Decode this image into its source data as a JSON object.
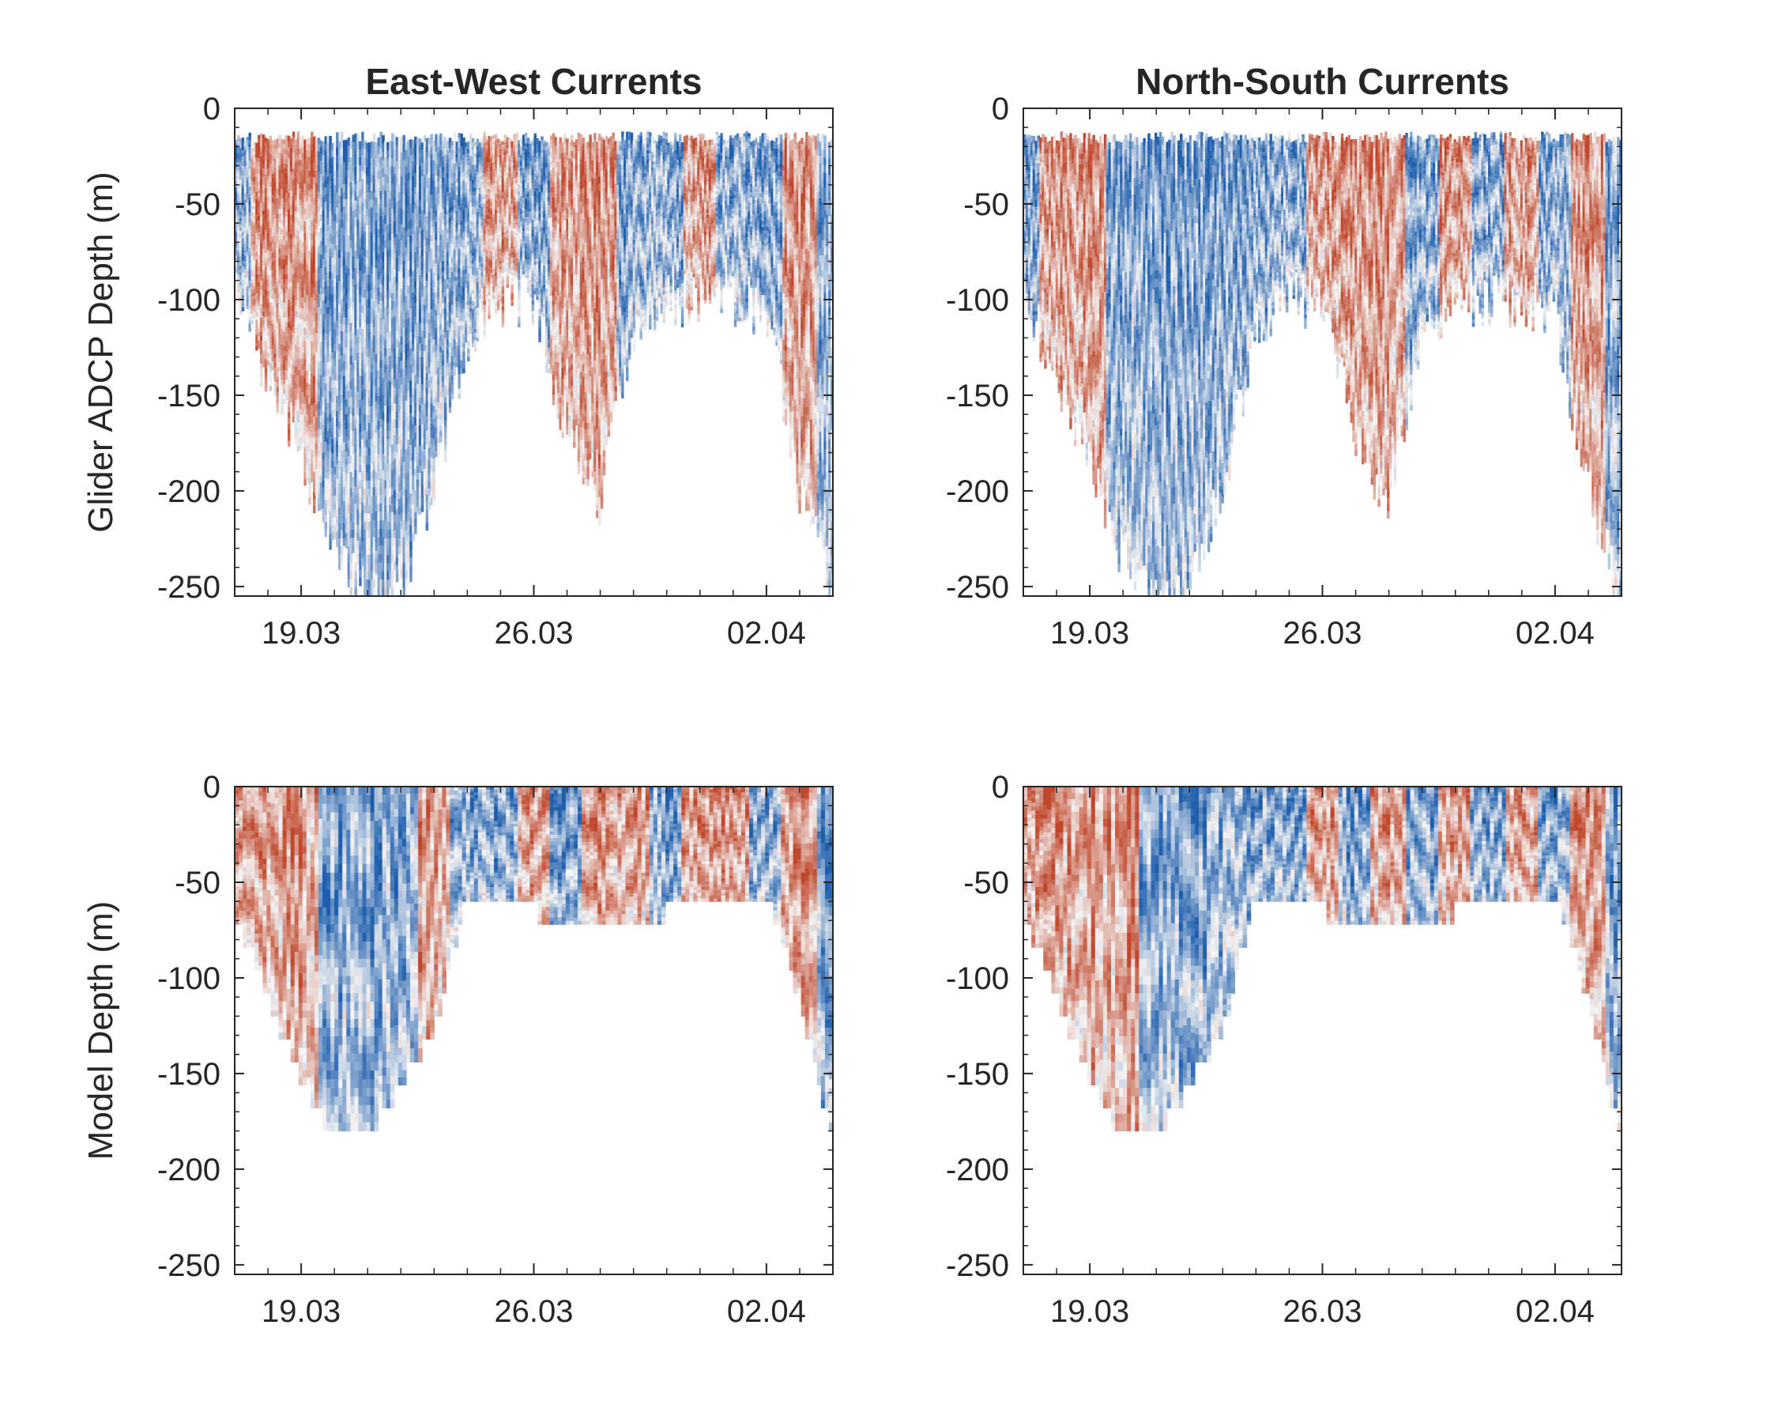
{
  "figure": {
    "panels": [
      {
        "id": "glider-ew",
        "title": "East-West Currents",
        "ylabel": "Glider ADCP Depth (m)"
      },
      {
        "id": "glider-ns",
        "title": "North-South Currents",
        "ylabel": ""
      },
      {
        "id": "model-ew",
        "title": "",
        "ylabel": "Model Depth (m)"
      },
      {
        "id": "model-ns",
        "title": "",
        "ylabel": ""
      }
    ]
  },
  "colors": {
    "negative": "#1f5fad",
    "neutral": "#f4f4f4",
    "positive": "#c0472b",
    "axis": "#262626"
  },
  "chart_data": [
    {
      "type": "heatmap",
      "title": "East-West Currents",
      "ylabel": "Glider ADCP Depth (m)",
      "xlabel": "",
      "xticks": [
        "19.03",
        "26.03",
        "02.04"
      ],
      "yticks": [
        0,
        -50,
        -100,
        -150,
        -200,
        -250
      ],
      "xlim": [
        "17.03",
        "04.04"
      ],
      "ylim": [
        -255,
        0
      ],
      "colormap": "diverging blue-white-red",
      "top_depth": -15,
      "bottom_depth_profile": {
        "x": [
          "17.03",
          "18.03",
          "19.03",
          "20.03",
          "21.03",
          "22.03",
          "23.03",
          "24.03",
          "25.03",
          "26.03",
          "27.03",
          "28.03",
          "29.03",
          "30.03",
          "31.03",
          "01.04",
          "02.04",
          "03.04",
          "04.04"
        ],
        "depth": [
          -95,
          -140,
          -180,
          -235,
          -255,
          -255,
          -195,
          -120,
          -100,
          -100,
          -170,
          -205,
          -115,
          -100,
          -100,
          -100,
          -105,
          -200,
          -255
        ]
      },
      "dominant_sign": [
        -1,
        1,
        1,
        -1,
        -1,
        -1,
        -1,
        -1,
        1,
        -1,
        1,
        1,
        -1,
        -1,
        1,
        -1,
        -1,
        1,
        -1
      ]
    },
    {
      "type": "heatmap",
      "title": "North-South Currents",
      "ylabel": "",
      "xlabel": "",
      "xticks": [
        "19.03",
        "26.03",
        "02.04"
      ],
      "yticks": [
        0,
        -50,
        -100,
        -150,
        -200,
        -250
      ],
      "xlim": [
        "17.03",
        "04.04"
      ],
      "ylim": [
        -255,
        0
      ],
      "colormap": "diverging blue-white-red",
      "top_depth": -15,
      "bottom_depth_profile": {
        "x": [
          "17.03",
          "18.03",
          "19.03",
          "20.03",
          "21.03",
          "22.03",
          "23.03",
          "24.03",
          "25.03",
          "26.03",
          "27.03",
          "28.03",
          "29.03",
          "30.03",
          "31.03",
          "01.04",
          "02.04",
          "03.04",
          "04.04"
        ],
        "depth": [
          -95,
          -140,
          -180,
          -235,
          -255,
          -255,
          -195,
          -120,
          -100,
          -100,
          -170,
          -205,
          -115,
          -100,
          -100,
          -100,
          -105,
          -200,
          -255
        ]
      },
      "dominant_sign": [
        -1,
        1,
        1,
        -1,
        -1,
        -1,
        -1,
        -1,
        -1,
        1,
        1,
        1,
        -1,
        1,
        -1,
        1,
        -1,
        1,
        -1
      ]
    },
    {
      "type": "heatmap",
      "title": "",
      "ylabel": "Model Depth (m)",
      "xlabel": "",
      "xticks": [
        "19.03",
        "26.03",
        "02.04"
      ],
      "yticks": [
        0,
        -50,
        -100,
        -150,
        -200,
        -250
      ],
      "xlim": [
        "17.03",
        "04.04"
      ],
      "ylim": [
        -255,
        0
      ],
      "colormap": "diverging blue-white-red",
      "top_depth": 0,
      "bottom_depth_profile": {
        "x": [
          "17.03",
          "18.03",
          "19.03",
          "20.03",
          "21.03",
          "22.03",
          "23.03",
          "24.03",
          "25.03",
          "26.03",
          "27.03",
          "28.03",
          "29.03",
          "30.03",
          "31.03",
          "01.04",
          "02.04",
          "03.04",
          "04.04"
        ],
        "depth": [
          -65,
          -110,
          -155,
          -185,
          -185,
          -155,
          -130,
          -55,
          -55,
          -65,
          -78,
          -78,
          -78,
          -65,
          -65,
          -55,
          -55,
          -110,
          -185
        ]
      },
      "dominant_sign": [
        1,
        1,
        1,
        -1,
        -1,
        -1,
        1,
        -1,
        -1,
        1,
        -1,
        1,
        1,
        -1,
        1,
        1,
        -1,
        1,
        -1
      ]
    },
    {
      "type": "heatmap",
      "title": "",
      "ylabel": "",
      "xlabel": "",
      "xticks": [
        "19.03",
        "26.03",
        "02.04"
      ],
      "yticks": [
        0,
        -50,
        -100,
        -150,
        -200,
        -250
      ],
      "xlim": [
        "17.03",
        "04.04"
      ],
      "ylim": [
        -255,
        0
      ],
      "colormap": "diverging blue-white-red",
      "top_depth": 0,
      "bottom_depth_profile": {
        "x": [
          "17.03",
          "18.03",
          "19.03",
          "20.03",
          "21.03",
          "22.03",
          "23.03",
          "24.03",
          "25.03",
          "26.03",
          "27.03",
          "28.03",
          "29.03",
          "30.03",
          "31.03",
          "01.04",
          "02.04",
          "03.04",
          "04.04"
        ],
        "depth": [
          -65,
          -110,
          -155,
          -185,
          -185,
          -155,
          -130,
          -55,
          -55,
          -65,
          -78,
          -78,
          -78,
          -65,
          -65,
          -55,
          -55,
          -110,
          -185
        ]
      },
      "dominant_sign": [
        1,
        1,
        1,
        1,
        -1,
        -1,
        -1,
        -1,
        -1,
        1,
        -1,
        1,
        -1,
        1,
        -1,
        1,
        -1,
        1,
        -1
      ]
    }
  ]
}
